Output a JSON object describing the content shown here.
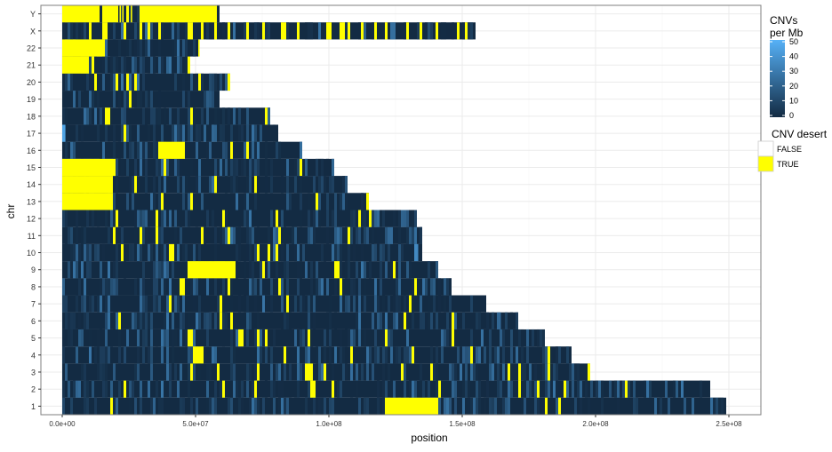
{
  "chart_data": {
    "type": "heatmap",
    "title": "",
    "xlabel": "position",
    "ylabel": "chr",
    "x_ticks": [
      {
        "value": 0,
        "label": "0.0e+00"
      },
      {
        "value": 50000000,
        "label": "5.0e+07"
      },
      {
        "value": 100000000,
        "label": "1.0e+08"
      },
      {
        "value": 150000000,
        "label": "1.5e+08"
      },
      {
        "value": 200000000,
        "label": "2.0e+08"
      },
      {
        "value": 250000000,
        "label": "2.5e+08"
      }
    ],
    "xlim": [
      -8000000,
      262000000
    ],
    "y_categories": [
      "1",
      "2",
      "3",
      "4",
      "5",
      "6",
      "7",
      "8",
      "9",
      "10",
      "11",
      "12",
      "13",
      "14",
      "15",
      "16",
      "17",
      "18",
      "19",
      "20",
      "21",
      "22",
      "X",
      "Y"
    ],
    "grid": true,
    "legend_position": "right",
    "legend_cnv": {
      "title_line1": "CNVs",
      "title_line2": "per Mb",
      "ticks": [
        "50",
        "40",
        "30",
        "20",
        "10",
        "0"
      ],
      "colors": {
        "low": "#132b43",
        "high": "#56b1f7"
      },
      "range": [
        0,
        50
      ]
    },
    "legend_desert": {
      "title": "CNV desert",
      "items": [
        {
          "label": "FALSE",
          "color": "#ffffff"
        },
        {
          "label": "TRUE",
          "color": "#ffff00"
        }
      ]
    },
    "desert_color": "#ffff00",
    "series": [
      {
        "chr": "1",
        "length": 249000000,
        "deserts": [
          [
            18000000,
            19000000
          ],
          [
            121000000,
            141000000
          ],
          [
            181000000,
            182000000
          ],
          [
            186000000,
            187000000
          ]
        ]
      },
      {
        "chr": "2",
        "length": 243000000,
        "deserts": [
          [
            23000000,
            24000000
          ],
          [
            60000000,
            61000000
          ],
          [
            72000000,
            73000000
          ],
          [
            93000000,
            95000000
          ],
          [
            101000000,
            102000000
          ],
          [
            141000000,
            142000000
          ],
          [
            171000000,
            172000000
          ],
          [
            178000000,
            179000000
          ],
          [
            188000000,
            189000000
          ],
          [
            211000000,
            212000000
          ]
        ]
      },
      {
        "chr": "3",
        "length": 198000000,
        "deserts": [
          [
            48000000,
            49000000
          ],
          [
            58000000,
            59000000
          ],
          [
            73000000,
            74000000
          ],
          [
            91000000,
            94000000
          ],
          [
            98000000,
            99000000
          ],
          [
            127000000,
            128000000
          ],
          [
            138000000,
            139000000
          ],
          [
            167000000,
            168000000
          ],
          [
            171000000,
            172000000
          ],
          [
            182000000,
            183000000
          ],
          [
            197000000,
            198000000
          ]
        ]
      },
      {
        "chr": "4",
        "length": 191000000,
        "deserts": [
          [
            49000000,
            53000000
          ],
          [
            83000000,
            84000000
          ],
          [
            108000000,
            109000000
          ],
          [
            131000000,
            132000000
          ],
          [
            153000000,
            154000000
          ],
          [
            153000000,
            154000000
          ],
          [
            182000000,
            183000000
          ]
        ]
      },
      {
        "chr": "5",
        "length": 181000000,
        "deserts": [
          [
            47000000,
            49000000
          ],
          [
            66000000,
            68000000
          ],
          [
            73000000,
            74000000
          ],
          [
            76000000,
            77000000
          ],
          [
            92000000,
            93000000
          ],
          [
            121000000,
            122000000
          ],
          [
            146000000,
            147000000
          ]
        ]
      },
      {
        "chr": "6",
        "length": 171000000,
        "deserts": [
          [
            21000000,
            22000000
          ],
          [
            59000000,
            60000000
          ],
          [
            63000000,
            64000000
          ],
          [
            128000000,
            129000000
          ],
          [
            146000000,
            147000000
          ]
        ]
      },
      {
        "chr": "7",
        "length": 159000000,
        "deserts": [
          [
            40000000,
            41000000
          ],
          [
            59000000,
            60000000
          ],
          [
            84000000,
            85000000
          ],
          [
            130000000,
            131000000
          ]
        ]
      },
      {
        "chr": "8",
        "length": 146000000,
        "deserts": [
          [
            44000000,
            46000000
          ],
          [
            62000000,
            63000000
          ],
          [
            81000000,
            82000000
          ],
          [
            104000000,
            105000000
          ],
          [
            132000000,
            133000000
          ]
        ]
      },
      {
        "chr": "9",
        "length": 141000000,
        "deserts": [
          [
            47000000,
            65000000
          ],
          [
            75000000,
            76000000
          ],
          [
            102000000,
            104000000
          ],
          [
            124000000,
            125000000
          ]
        ]
      },
      {
        "chr": "10",
        "length": 135000000,
        "deserts": [
          [
            22000000,
            23000000
          ],
          [
            40000000,
            42000000
          ],
          [
            73000000,
            74000000
          ],
          [
            77000000,
            78000000
          ],
          [
            80000000,
            81000000
          ]
        ]
      },
      {
        "chr": "11",
        "length": 135000000,
        "deserts": [
          [
            19000000,
            20000000
          ],
          [
            29000000,
            30000000
          ],
          [
            35000000,
            36000000
          ],
          [
            52000000,
            53000000
          ],
          [
            62000000,
            63000000
          ],
          [
            81000000,
            82000000
          ],
          [
            107000000,
            108000000
          ]
        ]
      },
      {
        "chr": "12",
        "length": 133000000,
        "deserts": [
          [
            20000000,
            21000000
          ],
          [
            35000000,
            36000000
          ],
          [
            60000000,
            61000000
          ],
          [
            80000000,
            81000000
          ],
          [
            111000000,
            112000000
          ],
          [
            115000000,
            116000000
          ]
        ]
      },
      {
        "chr": "13",
        "length": 115000000,
        "deserts": [
          [
            0,
            19000000
          ],
          [
            37000000,
            38000000
          ],
          [
            48000000,
            49000000
          ],
          [
            95000000,
            96000000
          ],
          [
            114000000,
            115000000
          ]
        ]
      },
      {
        "chr": "14",
        "length": 107000000,
        "deserts": [
          [
            0,
            19000000
          ],
          [
            27000000,
            28000000
          ],
          [
            57000000,
            58000000
          ],
          [
            72000000,
            73000000
          ]
        ]
      },
      {
        "chr": "15",
        "length": 102000000,
        "deserts": [
          [
            0,
            20000000
          ],
          [
            38000000,
            39000000
          ],
          [
            89000000,
            90000000
          ]
        ]
      },
      {
        "chr": "16",
        "length": 90000000,
        "deserts": [
          [
            36000000,
            46000000
          ],
          [
            63000000,
            64000000
          ],
          [
            69000000,
            70000000
          ]
        ]
      },
      {
        "chr": "17",
        "length": 81000000,
        "deserts": [
          [
            23000000,
            24000000
          ]
        ]
      },
      {
        "chr": "18",
        "length": 78000000,
        "deserts": [
          [
            16000000,
            18000000
          ],
          [
            48000000,
            49000000
          ],
          [
            76000000,
            77000000
          ]
        ]
      },
      {
        "chr": "19",
        "length": 59000000,
        "deserts": [
          [
            25000000,
            26000000
          ]
        ]
      },
      {
        "chr": "20",
        "length": 63000000,
        "deserts": [
          [
            12000000,
            13000000
          ],
          [
            20000000,
            21000000
          ],
          [
            24000000,
            25000000
          ],
          [
            27000000,
            28000000
          ],
          [
            51000000,
            52000000
          ],
          [
            62000000,
            63000000
          ]
        ]
      },
      {
        "chr": "21",
        "length": 48000000,
        "deserts": [
          [
            0,
            10000000
          ],
          [
            11000000,
            12000000
          ],
          [
            47000000,
            48000000
          ]
        ]
      },
      {
        "chr": "22",
        "length": 51000000,
        "deserts": [
          [
            0,
            16000000
          ],
          [
            51000000,
            51300000
          ]
        ]
      },
      {
        "chr": "X",
        "length": 155000000,
        "deserts": [
          [
            10000000,
            11000000
          ],
          [
            15000000,
            17000000
          ],
          [
            23000000,
            24000000
          ],
          [
            29000000,
            30000000
          ],
          [
            32000000,
            33000000
          ],
          [
            36000000,
            37000000
          ],
          [
            47000000,
            49000000
          ],
          [
            52000000,
            53000000
          ],
          [
            57000000,
            58000000
          ],
          [
            62000000,
            63000000
          ],
          [
            69000000,
            70000000
          ],
          [
            75000000,
            76000000
          ],
          [
            82000000,
            84000000
          ],
          [
            88000000,
            89000000
          ],
          [
            99000000,
            101000000
          ],
          [
            104000000,
            106000000
          ],
          [
            107000000,
            108000000
          ],
          [
            112000000,
            113000000
          ],
          [
            117000000,
            118000000
          ],
          [
            121000000,
            122000000
          ],
          [
            129000000,
            130000000
          ],
          [
            134000000,
            135000000
          ],
          [
            140000000,
            141000000
          ],
          [
            148000000,
            149000000
          ],
          [
            151000000,
            152000000
          ]
        ]
      },
      {
        "chr": "Y",
        "length": 59000000,
        "deserts": [
          [
            0,
            14000000
          ],
          [
            15000000,
            21000000
          ],
          [
            21500000,
            22000000
          ],
          [
            22500000,
            23000000
          ],
          [
            24000000,
            25000000
          ],
          [
            25700000,
            26000000
          ],
          [
            29000000,
            58000000
          ]
        ]
      }
    ]
  }
}
